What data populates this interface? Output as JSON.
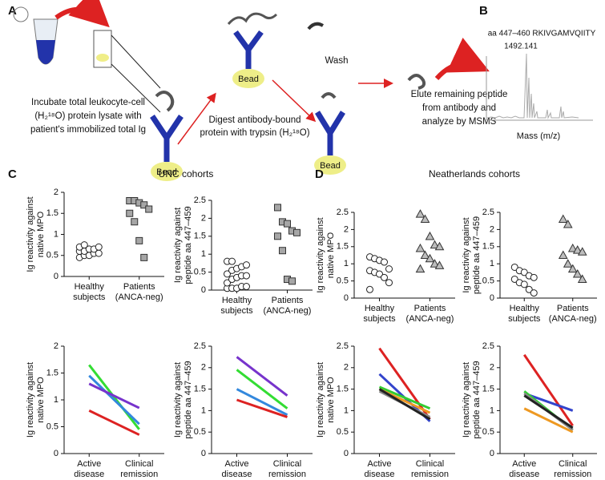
{
  "panel_a": {
    "label": "A",
    "steps": [
      {
        "lines": [
          "Incubate total leukocyte-cell",
          "(H₂¹⁸O) protein lysate with",
          "patient's immobilized total Ig"
        ]
      },
      {
        "lines": [
          "Digest antibody-bound",
          "protein with trypsin (H₂¹⁸O)"
        ]
      },
      {
        "lines": [
          "Elute remaining peptide",
          "from antibody and",
          "analyze by MSMS"
        ]
      }
    ],
    "wash": "Wash",
    "bead_labels": [
      "Bead",
      "Bead",
      "Bead"
    ]
  },
  "panel_b": {
    "label": "B",
    "peptide": "aa 447–460 RKIVGAMVQIITY",
    "peak_mass": "1492.141",
    "x_label": "Mass (m/z)"
  },
  "panel_c": {
    "label": "C",
    "title": "UNC cohorts"
  },
  "panel_d": {
    "label": "D",
    "title": "Neatherlands cohorts"
  },
  "chart_data": [
    {
      "type": "strip",
      "y_label": [
        "Ig reactivity against",
        "native MPO"
      ],
      "categories": [
        [
          "Healthy",
          "subjects"
        ],
        [
          "Patients",
          "(ANCA-neg)"
        ]
      ],
      "series": [
        {
          "marker": "circle",
          "color": "#ffffff",
          "values": [
            0.45,
            0.5,
            0.5,
            0.55,
            0.55,
            0.6,
            0.6,
            0.65,
            0.65,
            0.7,
            0.7,
            0.75
          ]
        },
        {
          "marker": "square",
          "color": "#a6a6a6",
          "values": [
            1.8,
            1.8,
            1.75,
            1.7,
            1.6,
            1.5,
            1.3,
            0.85,
            0.45
          ]
        }
      ],
      "ylim": [
        0,
        2
      ],
      "yticks": [
        0,
        0.5,
        1,
        1.5,
        2
      ]
    },
    {
      "type": "strip",
      "y_label": [
        "Ig reactivity against",
        "peptide aa 447–459"
      ],
      "categories": [
        [
          "Healthy",
          "subjects"
        ],
        [
          "Patients",
          "(ANCA-neg)"
        ]
      ],
      "series": [
        {
          "marker": "circle",
          "color": "#ffffff",
          "values": [
            0.05,
            0.05,
            0.05,
            0.1,
            0.1,
            0.2,
            0.3,
            0.35,
            0.4,
            0.4,
            0.45,
            0.55,
            0.6,
            0.65,
            0.7,
            0.8,
            0.8
          ]
        },
        {
          "marker": "square",
          "color": "#a6a6a6",
          "values": [
            2.3,
            1.9,
            1.85,
            1.65,
            1.6,
            1.5,
            1.1,
            0.3,
            0.25
          ]
        }
      ],
      "ylim": [
        0,
        2.5
      ],
      "yticks": [
        0,
        0.5,
        1,
        1.5,
        2,
        2.5
      ]
    },
    {
      "type": "strip",
      "y_label": [
        "Ig reactivity against",
        "native MPO"
      ],
      "categories": [
        [
          "Healthy",
          "subjects"
        ],
        [
          "Patients",
          "(ANCA-neg)"
        ]
      ],
      "series": [
        {
          "marker": "circle",
          "color": "#ffffff",
          "values": [
            1.2,
            1.15,
            1.1,
            1.05,
            0.85,
            0.8,
            0.75,
            0.7,
            0.6,
            0.45,
            0.25
          ]
        },
        {
          "marker": "triangle",
          "color": "#bdbdbd",
          "values": [
            2.45,
            2.3,
            1.8,
            1.55,
            1.5,
            1.45,
            1.25,
            1.15,
            1.0,
            0.95,
            0.85
          ]
        }
      ],
      "ylim": [
        0,
        2.5
      ],
      "yticks": [
        0,
        0.5,
        1,
        1.5,
        2,
        2.5
      ]
    },
    {
      "type": "strip",
      "y_label": [
        "Ig reactivity against",
        "peptide aa 447–459"
      ],
      "categories": [
        [
          "Healthy",
          "subjects"
        ],
        [
          "Patients",
          "(ANCA-neg)"
        ]
      ],
      "series": [
        {
          "marker": "circle",
          "color": "#ffffff",
          "values": [
            0.9,
            0.8,
            0.75,
            0.65,
            0.6,
            0.55,
            0.45,
            0.4,
            0.25,
            0.15
          ]
        },
        {
          "marker": "triangle",
          "color": "#bdbdbd",
          "values": [
            2.3,
            2.15,
            1.45,
            1.4,
            1.35,
            1.25,
            1.0,
            0.85,
            0.7,
            0.55
          ]
        }
      ],
      "ylim": [
        0,
        2.5
      ],
      "yticks": [
        0,
        0.5,
        1,
        1.5,
        2,
        2.5
      ]
    },
    {
      "type": "line",
      "y_label": [
        "Ig reactivity against",
        "native MPO"
      ],
      "categories": [
        [
          "Active",
          "disease"
        ],
        [
          "Clinical",
          "remission"
        ]
      ],
      "series": [
        {
          "color": "#33dd33",
          "values": [
            1.65,
            0.45
          ]
        },
        {
          "color": "#3388dd",
          "values": [
            1.45,
            0.55
          ]
        },
        {
          "color": "#7733cc",
          "values": [
            1.3,
            0.85
          ]
        },
        {
          "color": "#dd2222",
          "values": [
            0.8,
            0.35
          ]
        }
      ],
      "ylim": [
        0,
        2
      ],
      "yticks": [
        0,
        0.5,
        1,
        1.5,
        2
      ]
    },
    {
      "type": "line",
      "y_label": [
        "Ig reactivity against",
        "peptide aa 447–459"
      ],
      "categories": [
        [
          "Active",
          "disease"
        ],
        [
          "Clinical",
          "remission"
        ]
      ],
      "series": [
        {
          "color": "#7733cc",
          "values": [
            2.25,
            1.35
          ]
        },
        {
          "color": "#33dd33",
          "values": [
            1.95,
            1.05
          ]
        },
        {
          "color": "#3388dd",
          "values": [
            1.5,
            0.9
          ]
        },
        {
          "color": "#dd2222",
          "values": [
            1.25,
            0.85
          ]
        }
      ],
      "ylim": [
        0,
        2.5
      ],
      "yticks": [
        0,
        0.5,
        1,
        1.5,
        2,
        2.5
      ]
    },
    {
      "type": "line",
      "y_label": [
        "Ig reactivity against",
        "native MPO"
      ],
      "categories": [
        [
          "Active",
          "disease"
        ],
        [
          "Clinical",
          "remission"
        ]
      ],
      "series": [
        {
          "color": "#dd2222",
          "values": [
            2.45,
            0.8
          ]
        },
        {
          "color": "#3344cc",
          "values": [
            1.85,
            0.75
          ]
        },
        {
          "color": "#33cc33",
          "values": [
            1.55,
            1.05
          ]
        },
        {
          "color": "#ee9922",
          "values": [
            1.5,
            0.95
          ]
        },
        {
          "color": "#888888",
          "values": [
            1.45,
            0.85
          ]
        },
        {
          "color": "#222222",
          "values": [
            1.5,
            0.8
          ]
        }
      ],
      "ylim": [
        0,
        2.5
      ],
      "yticks": [
        0,
        0.5,
        1,
        1.5,
        2,
        2.5
      ]
    },
    {
      "type": "line",
      "y_label": [
        "Ig reactivity against",
        "peptide aa 447–459"
      ],
      "categories": [
        [
          "Active",
          "disease"
        ],
        [
          "Clinical",
          "remission"
        ]
      ],
      "series": [
        {
          "color": "#dd2222",
          "values": [
            2.3,
            0.65
          ]
        },
        {
          "color": "#3344cc",
          "values": [
            1.4,
            1.0
          ]
        },
        {
          "color": "#33cc33",
          "values": [
            1.45,
            0.55
          ]
        },
        {
          "color": "#888888",
          "values": [
            1.4,
            0.55
          ]
        },
        {
          "color": "#222222",
          "values": [
            1.35,
            0.6
          ]
        },
        {
          "color": "#ee9922",
          "values": [
            1.05,
            0.5
          ]
        }
      ],
      "ylim": [
        0,
        2.5
      ],
      "yticks": [
        0,
        0.5,
        1,
        1.5,
        2,
        2.5
      ]
    }
  ]
}
